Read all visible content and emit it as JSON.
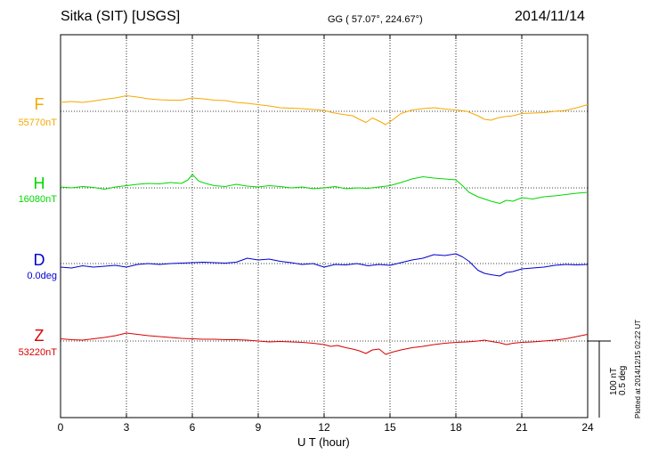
{
  "header": {
    "station": "Sitka (SIT)  [USGS]",
    "coords": "GG ( 57.07°, 224.67°)",
    "date": "2014/11/14"
  },
  "footer": {
    "xlabel": "U T (hour)",
    "plotted": "Plotted at 2014/12/15 02:22 UT"
  },
  "scale": {
    "nt": "100 nT",
    "deg": "0.5 deg"
  },
  "colors": {
    "F": "#f5a800",
    "H": "#00d800",
    "D": "#0000d0",
    "Z": "#d80000"
  },
  "chart_data": {
    "type": "line",
    "xlabel": "U T (hour)",
    "xlim": [
      0,
      24
    ],
    "xticks": [
      0,
      3,
      6,
      9,
      12,
      15,
      18,
      21,
      24
    ],
    "grid": true,
    "series": [
      {
        "name": "F",
        "baseline_label": "55770nT",
        "units": "nT",
        "x": [
          0,
          0.5,
          1,
          1.5,
          2,
          2.5,
          3,
          3.5,
          4,
          4.5,
          5,
          5.5,
          6,
          6.5,
          7,
          7.5,
          8,
          8.5,
          9,
          9.5,
          10,
          10.5,
          11,
          11.5,
          12,
          12.3,
          12.6,
          13,
          13.3,
          13.6,
          13.9,
          14.2,
          14.5,
          14.8,
          15.1,
          15.5,
          16,
          16.5,
          17,
          17.5,
          18,
          18.5,
          19,
          19.3,
          19.6,
          19.9,
          20.2,
          20.6,
          21,
          21.5,
          22,
          22.5,
          23,
          23.5,
          24
        ],
        "y": [
          20,
          22,
          20,
          23,
          27,
          30,
          35,
          32,
          28,
          26,
          25,
          25,
          30,
          28,
          25,
          24,
          20,
          18,
          15,
          12,
          8,
          7,
          6,
          4,
          2,
          -2,
          -5,
          -8,
          -10,
          -18,
          -25,
          -15,
          -22,
          -30,
          -20,
          -5,
          3,
          6,
          8,
          5,
          3,
          0,
          -10,
          -18,
          -20,
          -15,
          -12,
          -10,
          -5,
          -4,
          -3,
          0,
          2,
          8,
          15
        ]
      },
      {
        "name": "H",
        "baseline_label": "16080nT",
        "units": "nT",
        "x": [
          0,
          0.5,
          1,
          1.5,
          2,
          2.5,
          3,
          3.5,
          4,
          4.5,
          5,
          5.5,
          5.8,
          6,
          6.3,
          6.6,
          7,
          7.5,
          8,
          8.5,
          9,
          9.5,
          10,
          10.5,
          11,
          11.5,
          12,
          12.5,
          13,
          13.5,
          14,
          14.5,
          15,
          15.5,
          16,
          16.5,
          17,
          17.5,
          18,
          18.3,
          18.6,
          19,
          19.3,
          19.6,
          20,
          20.3,
          20.6,
          21,
          21.5,
          22,
          22.5,
          23,
          23.5,
          24
        ],
        "y": [
          2,
          0,
          3,
          1,
          -3,
          2,
          5,
          8,
          10,
          9,
          12,
          10,
          18,
          30,
          15,
          10,
          5,
          3,
          8,
          4,
          2,
          5,
          3,
          0,
          2,
          -2,
          0,
          3,
          -2,
          0,
          -1,
          2,
          5,
          12,
          20,
          25,
          22,
          20,
          18,
          5,
          -10,
          -20,
          -25,
          -30,
          -35,
          -28,
          -30,
          -22,
          -25,
          -20,
          -18,
          -15,
          -12,
          -10
        ]
      },
      {
        "name": "D",
        "baseline_label": "0.0deg",
        "units": "deg",
        "x": [
          0,
          0.5,
          1,
          1.5,
          2,
          2.5,
          3,
          3.5,
          4,
          4.5,
          5,
          5.5,
          6,
          6.5,
          7,
          7.5,
          8,
          8.5,
          9,
          9.5,
          10,
          10.5,
          11,
          11.5,
          12,
          12.5,
          13,
          13.5,
          14,
          14.5,
          15,
          15.5,
          16,
          16.5,
          17,
          17.5,
          18,
          18.3,
          18.6,
          19,
          19.3,
          19.6,
          20,
          20.3,
          20.6,
          21,
          21.5,
          22,
          22.5,
          23,
          23.5,
          24
        ],
        "y": [
          -8,
          -10,
          -5,
          -8,
          -6,
          -4,
          -8,
          -2,
          0,
          -2,
          0,
          1,
          2,
          3,
          2,
          1,
          3,
          12,
          8,
          10,
          5,
          2,
          -2,
          0,
          -8,
          -2,
          -3,
          0,
          -5,
          -2,
          -4,
          2,
          8,
          12,
          20,
          18,
          22,
          15,
          5,
          -15,
          -22,
          -25,
          -28,
          -20,
          -18,
          -12,
          -10,
          -8,
          -4,
          -2,
          -3,
          -2
        ]
      },
      {
        "name": "Z",
        "baseline_label": "53220nT",
        "units": "nT",
        "x": [
          0,
          0.5,
          1,
          1.5,
          2,
          2.5,
          3,
          3.5,
          4,
          4.5,
          5,
          5.5,
          6,
          6.5,
          7,
          7.5,
          8,
          8.5,
          9,
          9.5,
          10,
          10.5,
          11,
          11.5,
          12,
          12.3,
          12.6,
          13,
          13.3,
          13.6,
          13.9,
          14.2,
          14.5,
          14.8,
          15.1,
          15.5,
          16,
          16.5,
          17,
          17.5,
          18,
          18.5,
          19,
          19.3,
          19.6,
          20,
          20.3,
          20.6,
          21,
          21.5,
          22,
          22.5,
          23,
          23.5,
          24
        ],
        "y": [
          5,
          3,
          2,
          5,
          8,
          12,
          18,
          15,
          12,
          10,
          8,
          6,
          5,
          4,
          4,
          3,
          3,
          2,
          0,
          -2,
          -1,
          -2,
          -3,
          -5,
          -8,
          -12,
          -10,
          -15,
          -18,
          -22,
          -28,
          -20,
          -18,
          -30,
          -25,
          -20,
          -15,
          -12,
          -8,
          -5,
          -3,
          -2,
          0,
          2,
          -1,
          -4,
          -8,
          -5,
          -3,
          -2,
          0,
          2,
          5,
          10,
          15
        ]
      }
    ]
  }
}
